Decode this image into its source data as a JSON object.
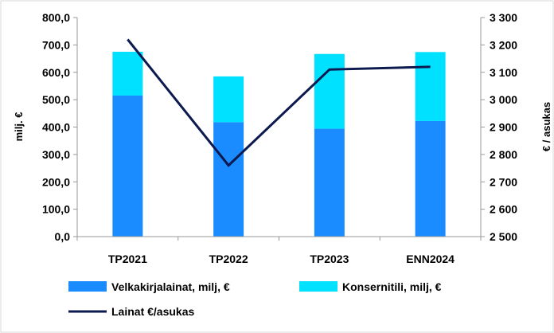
{
  "chart_data": {
    "type": "bar",
    "categories": [
      "TP2021",
      "TP2022",
      "TP2023",
      "ENN2024"
    ],
    "series": [
      {
        "name": "Velkakirjalainat, milj, €",
        "type": "stacked-bar",
        "axis": "left",
        "values": [
          515,
          418,
          394,
          422
        ],
        "color": "#1a8cff"
      },
      {
        "name": "Konsernitili, milj, €",
        "type": "stacked-bar",
        "axis": "left",
        "values": [
          160,
          167,
          273,
          252
        ],
        "color": "#00e0ff"
      },
      {
        "name": "Lainat €/asukas",
        "type": "line",
        "axis": "right",
        "values": [
          3220,
          2760,
          3110,
          3120
        ],
        "color": "#0d1a4f"
      }
    ],
    "ylabel": "milj. €",
    "ylabel_right": "€ / asukas",
    "ylim": [
      0,
      800
    ],
    "ylim_right": [
      2500,
      3300
    ],
    "yticks": [
      "0,0",
      "100,0",
      "200,0",
      "300,0",
      "400,0",
      "500,0",
      "600,0",
      "700,0",
      "800,0"
    ],
    "yticks_right": [
      "2 500",
      "2 600",
      "2 700",
      "2 800",
      "2 900",
      "3 000",
      "3 100",
      "3 200",
      "3 300"
    ],
    "grid": false,
    "legend": "bottom"
  }
}
